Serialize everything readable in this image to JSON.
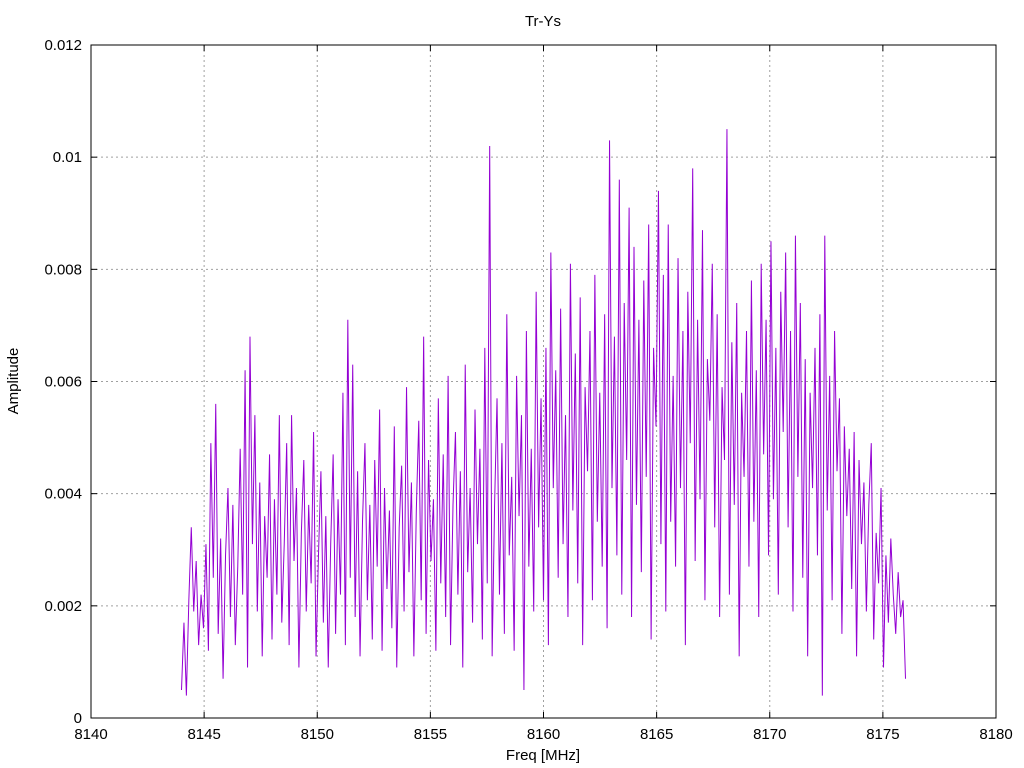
{
  "chart_data": {
    "type": "line",
    "title": "Tr-Ys",
    "xlabel": "Freq [MHz]",
    "ylabel": "Amplitude",
    "xlim": [
      8140,
      8180
    ],
    "ylim": [
      0,
      0.012
    ],
    "x_ticks": [
      8140,
      8145,
      8150,
      8155,
      8160,
      8165,
      8170,
      8175,
      8180
    ],
    "x_tick_labels": [
      "8140",
      "8145",
      "8150",
      "8155",
      "8160",
      "8165",
      "8170",
      "8175",
      "8180"
    ],
    "y_ticks": [
      0,
      0.002,
      0.004,
      0.006,
      0.008,
      0.01,
      0.012
    ],
    "y_tick_labels": [
      "0",
      "0.002",
      "0.004",
      "0.006",
      "0.008",
      "0.01",
      "0.012"
    ],
    "grid": true,
    "series": [
      {
        "color": "#9400d3",
        "x_start": 8144.0,
        "x_end": 8176.0,
        "values": [
          0.0005,
          0.0017,
          0.0004,
          0.0021,
          0.0034,
          0.0019,
          0.0028,
          0.0013,
          0.0022,
          0.0016,
          0.0031,
          0.0012,
          0.0049,
          0.0025,
          0.0056,
          0.0015,
          0.0032,
          0.0007,
          0.0029,
          0.0041,
          0.0018,
          0.0038,
          0.0013,
          0.0027,
          0.0048,
          0.0022,
          0.0062,
          0.0009,
          0.0068,
          0.0031,
          0.0054,
          0.0019,
          0.0042,
          0.0011,
          0.0036,
          0.0025,
          0.0047,
          0.0014,
          0.0039,
          0.0022,
          0.0054,
          0.0017,
          0.0031,
          0.0049,
          0.0013,
          0.0054,
          0.0028,
          0.0041,
          0.0009,
          0.0033,
          0.0046,
          0.0019,
          0.0038,
          0.0024,
          0.0051,
          0.0011,
          0.0029,
          0.0044,
          0.0017,
          0.0036,
          0.0009,
          0.0031,
          0.0047,
          0.0015,
          0.0039,
          0.0022,
          0.0058,
          0.0013,
          0.0071,
          0.0025,
          0.0063,
          0.0018,
          0.0044,
          0.0011,
          0.0035,
          0.0049,
          0.0021,
          0.0038,
          0.0014,
          0.0046,
          0.0027,
          0.0055,
          0.0012,
          0.0041,
          0.0023,
          0.0037,
          0.0016,
          0.0052,
          0.0009,
          0.0034,
          0.0045,
          0.0019,
          0.0059,
          0.0026,
          0.0042,
          0.0011,
          0.0037,
          0.0053,
          0.0021,
          0.0068,
          0.0015,
          0.0046,
          0.0028,
          0.0039,
          0.0012,
          0.0057,
          0.0024,
          0.0047,
          0.0018,
          0.0061,
          0.0013,
          0.0038,
          0.0051,
          0.0022,
          0.0044,
          0.0009,
          0.0063,
          0.0026,
          0.0041,
          0.0017,
          0.0055,
          0.0031,
          0.0048,
          0.0014,
          0.0066,
          0.0024,
          0.0102,
          0.0011,
          0.0038,
          0.0057,
          0.0022,
          0.0049,
          0.0015,
          0.0072,
          0.0029,
          0.0043,
          0.0012,
          0.0061,
          0.0036,
          0.0054,
          0.0005,
          0.0069,
          0.0027,
          0.0048,
          0.0019,
          0.0076,
          0.0034,
          0.0057,
          0.0021,
          0.0066,
          0.0013,
          0.0083,
          0.0041,
          0.0062,
          0.0025,
          0.0073,
          0.0031,
          0.0054,
          0.0018,
          0.0081,
          0.0037,
          0.0065,
          0.0024,
          0.0075,
          0.0013,
          0.0059,
          0.0044,
          0.0069,
          0.0021,
          0.0079,
          0.0035,
          0.0058,
          0.0027,
          0.0072,
          0.0016,
          0.0103,
          0.0041,
          0.0068,
          0.0029,
          0.0096,
          0.0022,
          0.0074,
          0.0046,
          0.0091,
          0.0018,
          0.0084,
          0.0038,
          0.0071,
          0.0026,
          0.0078,
          0.0043,
          0.0088,
          0.0014,
          0.0066,
          0.0052,
          0.0094,
          0.0031,
          0.0079,
          0.0019,
          0.0088,
          0.0035,
          0.0061,
          0.0027,
          0.0082,
          0.0041,
          0.0069,
          0.0013,
          0.0076,
          0.0049,
          0.0098,
          0.0028,
          0.0071,
          0.0039,
          0.0087,
          0.0021,
          0.0064,
          0.0053,
          0.0081,
          0.0034,
          0.0072,
          0.0018,
          0.0059,
          0.0046,
          0.0105,
          0.0022,
          0.0067,
          0.0038,
          0.0074,
          0.0011,
          0.0058,
          0.0043,
          0.0069,
          0.0027,
          0.0078,
          0.0035,
          0.0062,
          0.0018,
          0.0081,
          0.0047,
          0.0071,
          0.0029,
          0.0085,
          0.0039,
          0.0066,
          0.0022,
          0.0076,
          0.0051,
          0.0083,
          0.0034,
          0.0069,
          0.0019,
          0.0086,
          0.0043,
          0.0074,
          0.0025,
          0.0064,
          0.0011,
          0.0058,
          0.0041,
          0.0066,
          0.0029,
          0.0072,
          0.0004,
          0.0086,
          0.0037,
          0.0061,
          0.0021,
          0.0069,
          0.0044,
          0.0057,
          0.0015,
          0.0052,
          0.0036,
          0.0048,
          0.0023,
          0.0051,
          0.0011,
          0.0046,
          0.0031,
          0.0042,
          0.0019,
          0.0038,
          0.0049,
          0.0014,
          0.0033,
          0.0024,
          0.0041,
          0.0009,
          0.0029,
          0.0017,
          0.0032,
          0.0022,
          0.0015,
          0.0026,
          0.0018,
          0.0021,
          0.0007
        ]
      }
    ]
  }
}
